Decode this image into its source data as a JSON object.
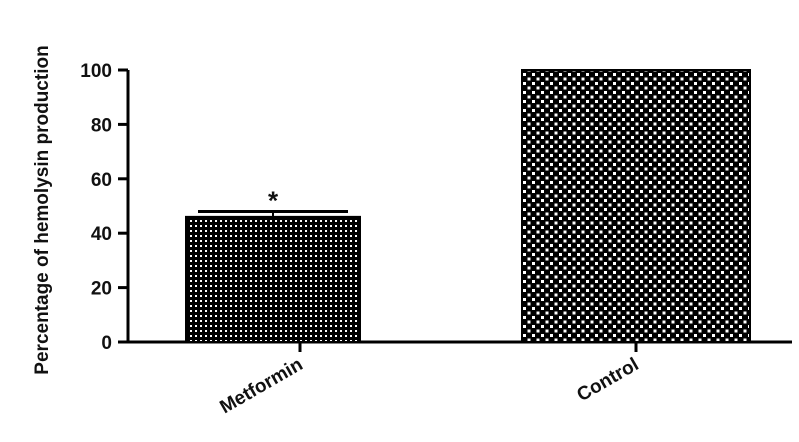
{
  "chart_data": {
    "type": "bar",
    "title": "",
    "xlabel": "",
    "ylabel": "Percentage of hemolysin production",
    "categories": [
      "Metformin",
      "Control"
    ],
    "values": [
      46,
      100
    ],
    "error": [
      2,
      0
    ],
    "annotations": [
      "*",
      ""
    ],
    "ylim": [
      0,
      100
    ],
    "yticks": [
      0,
      20,
      40,
      60,
      80,
      100
    ],
    "grid": false,
    "legend": "none",
    "bar_fill": [
      "dotted-dense",
      "checkered"
    ],
    "colors": {
      "bar": "#000000",
      "dots": "#ffffff",
      "axis": "#000000"
    }
  }
}
